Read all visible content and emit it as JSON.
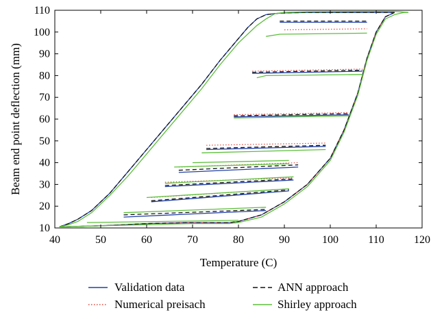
{
  "chart_data": {
    "type": "line",
    "title": "",
    "xlabel": "Temperature (C)",
    "ylabel": "Beam end point deflection (mm)",
    "xlim": [
      40,
      120
    ],
    "ylim": [
      10,
      110
    ],
    "xticks": [
      40,
      50,
      60,
      70,
      80,
      90,
      100,
      110,
      120
    ],
    "yticks": [
      10,
      20,
      30,
      40,
      50,
      60,
      70,
      80,
      90,
      100,
      110
    ],
    "grid": false,
    "legend": "bottom, two columns",
    "series": [
      {
        "name": "Validation data",
        "color": "#1f3fa8",
        "dash": "solid",
        "segments": [
          [
            [
              41,
              10.5
            ],
            [
              50,
              11
            ],
            [
              60,
              12
            ],
            [
              70,
              12.5
            ],
            [
              78,
              12.5
            ],
            [
              80,
              13
            ],
            [
              85,
              16
            ],
            [
              90,
              22
            ],
            [
              95,
              30
            ],
            [
              100,
              42
            ],
            [
              103,
              55
            ],
            [
              106,
              72
            ],
            [
              108,
              88
            ],
            [
              110,
              100
            ],
            [
              112,
              107
            ],
            [
              114,
              109
            ]
          ],
          [
            [
              114,
              109
            ],
            [
              112,
              109
            ],
            [
              110,
              109
            ],
            [
              95,
              109
            ],
            [
              90,
              108.8
            ],
            [
              88,
              108.5
            ],
            [
              86,
              108
            ],
            [
              84,
              106
            ],
            [
              82,
              102
            ],
            [
              80,
              97
            ],
            [
              76,
              87
            ],
            [
              72,
              76
            ],
            [
              68,
              66
            ],
            [
              64,
              56
            ],
            [
              60,
              46
            ],
            [
              56,
              36
            ],
            [
              52,
              26
            ],
            [
              48,
              18
            ],
            [
              45,
              14
            ],
            [
              43,
              12
            ],
            [
              41,
              10.5
            ]
          ],
          [
            [
              89,
              104.5
            ],
            [
              108,
              104.5
            ]
          ],
          [
            [
              83,
              81
            ],
            [
              107,
              82
            ]
          ],
          [
            [
              79,
              61
            ],
            [
              104,
              62
            ]
          ],
          [
            [
              73,
              46
            ],
            [
              99,
              47.5
            ]
          ],
          [
            [
              67,
              35.5
            ],
            [
              93,
              38
            ]
          ],
          [
            [
              64,
              29
            ],
            [
              92,
              32
            ]
          ],
          [
            [
              61,
              22
            ],
            [
              91,
              27
            ]
          ],
          [
            [
              55,
              15
            ],
            [
              86,
              18
            ]
          ]
        ]
      },
      {
        "name": "Numerical preisach",
        "color": "#e0463c",
        "dash": "dotted",
        "segments": [
          [
            [
              41,
              10.5
            ],
            [
              50,
              11
            ],
            [
              60,
              12
            ],
            [
              70,
              12.5
            ],
            [
              78,
              12.5
            ],
            [
              80,
              13
            ],
            [
              85,
              16
            ],
            [
              90,
              22
            ],
            [
              95,
              30
            ],
            [
              100,
              42
            ],
            [
              103,
              55
            ],
            [
              106,
              72
            ],
            [
              108,
              88
            ],
            [
              110,
              100
            ],
            [
              112,
              107
            ],
            [
              114,
              109
            ]
          ],
          [
            [
              90,
              101
            ],
            [
              108,
              101.5
            ]
          ],
          [
            [
              83,
              82
            ],
            [
              107,
              83
            ]
          ],
          [
            [
              79,
              62
            ],
            [
              104,
              63
            ]
          ],
          [
            [
              73,
              48
            ],
            [
              99,
              49
            ]
          ],
          [
            [
              67,
              38
            ],
            [
              93,
              40
            ]
          ],
          [
            [
              64,
              31
            ],
            [
              92,
              33
            ]
          ],
          [
            [
              61,
              24
            ],
            [
              91,
              28
            ]
          ]
        ]
      },
      {
        "name": "ANN approach",
        "color": "#111111",
        "dash": "dashed",
        "segments": [
          [
            [
              41,
              10.5
            ],
            [
              50,
              11
            ],
            [
              60,
              12
            ],
            [
              70,
              12.5
            ],
            [
              78,
              12.5
            ],
            [
              80,
              13
            ],
            [
              85,
              16
            ],
            [
              90,
              22
            ],
            [
              95,
              30
            ],
            [
              100,
              42
            ],
            [
              103,
              55
            ],
            [
              106,
              72
            ],
            [
              108,
              88
            ],
            [
              110,
              100
            ],
            [
              112,
              107
            ],
            [
              114,
              109
            ]
          ],
          [
            [
              114,
              109
            ],
            [
              112,
              109
            ],
            [
              110,
              109
            ],
            [
              95,
              109
            ],
            [
              90,
              108.8
            ],
            [
              88,
              108.5
            ],
            [
              86,
              108
            ],
            [
              84,
              106
            ],
            [
              82,
              102
            ],
            [
              80,
              97
            ],
            [
              76,
              87
            ],
            [
              72,
              76
            ],
            [
              68,
              66
            ],
            [
              64,
              56
            ],
            [
              60,
              46
            ],
            [
              56,
              36
            ],
            [
              52,
              26
            ],
            [
              48,
              18
            ],
            [
              45,
              14
            ],
            [
              43,
              12
            ],
            [
              41,
              10.5
            ]
          ],
          [
            [
              89,
              105
            ],
            [
              108,
              105
            ]
          ],
          [
            [
              83,
              81.5
            ],
            [
              107,
              82.5
            ]
          ],
          [
            [
              79,
              61.5
            ],
            [
              104,
              62.5
            ]
          ],
          [
            [
              73,
              46.5
            ],
            [
              99,
              48
            ]
          ],
          [
            [
              67,
              36.5
            ],
            [
              93,
              39
            ]
          ],
          [
            [
              64,
              29.5
            ],
            [
              92,
              32.5
            ]
          ],
          [
            [
              61,
              22.5
            ],
            [
              91,
              27.5
            ]
          ],
          [
            [
              55,
              16
            ],
            [
              86,
              18.5
            ]
          ]
        ]
      },
      {
        "name": "Shirley approach",
        "color": "#5cbf3a",
        "dash": "solid",
        "segments": [
          [
            [
              41,
              10.5
            ],
            [
              50,
              11
            ],
            [
              60,
              11.5
            ],
            [
              70,
              12
            ],
            [
              78,
              12
            ],
            [
              80,
              12.5
            ],
            [
              85,
              15
            ],
            [
              90,
              21
            ],
            [
              95,
              29
            ],
            [
              100,
              41
            ],
            [
              103,
              54
            ],
            [
              106,
              71
            ],
            [
              108,
              87
            ],
            [
              110,
              99
            ],
            [
              112,
              106
            ],
            [
              114,
              108
            ],
            [
              116,
              109
            ],
            [
              117,
              109
            ]
          ],
          [
            [
              117,
              109
            ],
            [
              114,
              109.5
            ],
            [
              110,
              109.5
            ],
            [
              95,
              109.3
            ],
            [
              90,
              109
            ],
            [
              88,
              108.5
            ],
            [
              86,
              106
            ],
            [
              84,
              103
            ],
            [
              82,
              99
            ],
            [
              80,
              95
            ],
            [
              76,
              85
            ],
            [
              72,
              74
            ],
            [
              68,
              64
            ],
            [
              64,
              54
            ],
            [
              60,
              44
            ],
            [
              56,
              34
            ],
            [
              52,
              25
            ],
            [
              48,
              17
            ],
            [
              45,
              13
            ],
            [
              43,
              11.5
            ],
            [
              41,
              10.5
            ]
          ],
          [
            [
              86,
              98
            ],
            [
              89,
              99
            ],
            [
              108,
              99.5
            ]
          ],
          [
            [
              84,
              79
            ],
            [
              86,
              80
            ],
            [
              107,
              80.5
            ]
          ],
          [
            [
              79,
              60.5
            ],
            [
              104,
              61.5
            ]
          ],
          [
            [
              72,
              44.5
            ],
            [
              99,
              46
            ]
          ],
          [
            [
              70,
              40
            ],
            [
              91,
              41
            ]
          ],
          [
            [
              66,
              38
            ],
            [
              91,
              39.5
            ]
          ],
          [
            [
              64,
              30.5
            ],
            [
              92,
              33.5
            ]
          ],
          [
            [
              60,
              24
            ],
            [
              91,
              28
            ]
          ],
          [
            [
              55,
              17
            ],
            [
              86,
              19.5
            ]
          ],
          [
            [
              47,
              12.5
            ],
            [
              80,
              13.5
            ]
          ]
        ]
      }
    ]
  }
}
